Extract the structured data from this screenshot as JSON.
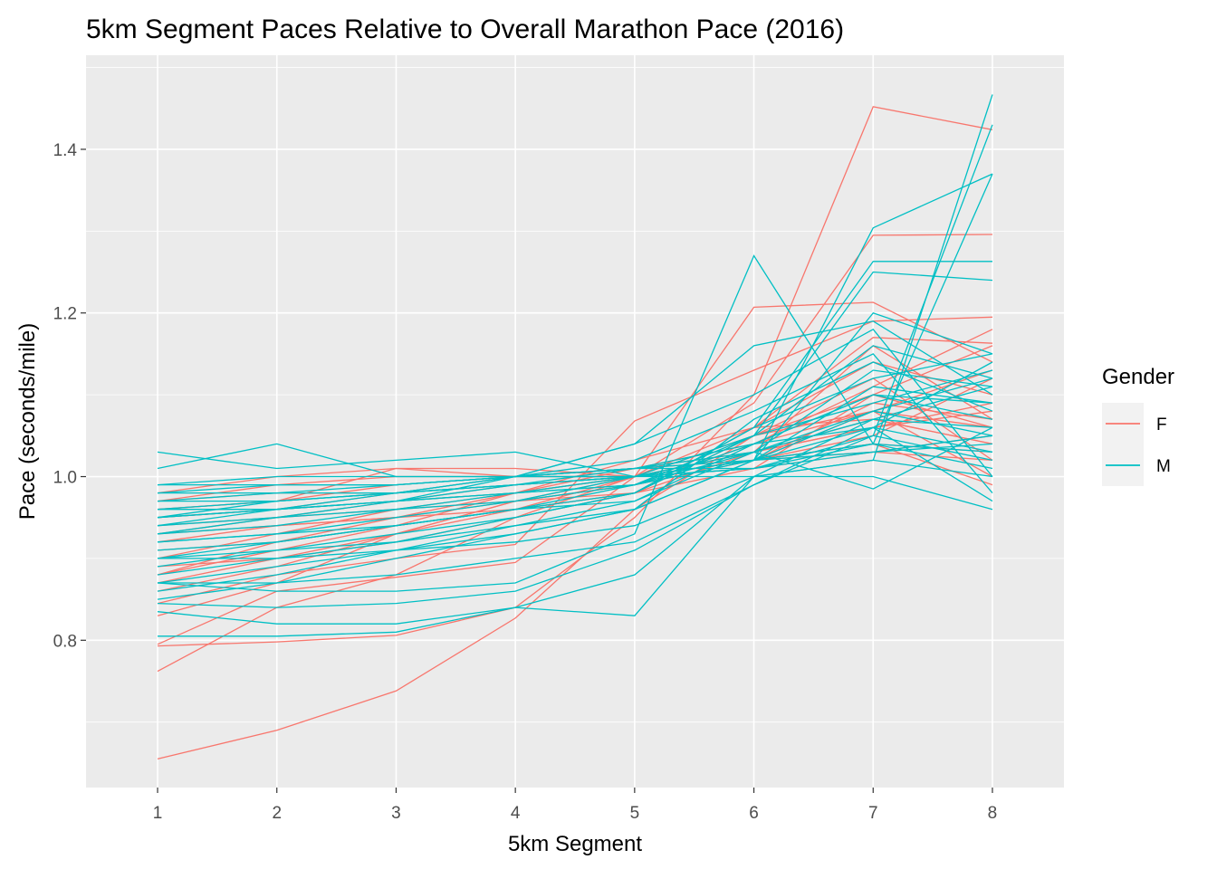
{
  "chart_data": {
    "type": "line",
    "title": "5km Segment Paces Relative to Overall Marathon Pace (2016)",
    "xlabel": "5km Segment",
    "ylabel": "Pace (seconds/mile)",
    "x": [
      1,
      2,
      3,
      4,
      5,
      6,
      7,
      8
    ],
    "x_ticks": [
      "1",
      "2",
      "3",
      "4",
      "5",
      "6",
      "7",
      "8"
    ],
    "y_ticks": [
      "0.8",
      "1.0",
      "1.2",
      "1.4"
    ],
    "y_tick_values": [
      0.8,
      1.0,
      1.2,
      1.4
    ],
    "xlim": [
      0.4,
      8.6
    ],
    "ylim": [
      0.62,
      1.515
    ],
    "grid": true,
    "panel_background": "#ebebeb",
    "legend": {
      "title": "Gender",
      "position": "right",
      "entries": [
        {
          "label": "F",
          "color": "#F8766D"
        },
        {
          "label": "M",
          "color": "#00BFC4"
        }
      ]
    },
    "series": [
      {
        "group": "F",
        "color": "#F8766D",
        "values": [
          0.655,
          0.69,
          0.738,
          0.827,
          0.96,
          1.05,
          1.08,
          1.06
        ]
      },
      {
        "group": "F",
        "color": "#F8766D",
        "values": [
          0.762,
          0.84,
          0.88,
          0.95,
          1.0,
          1.05,
          1.1,
          1.06
        ]
      },
      {
        "group": "F",
        "color": "#F8766D",
        "values": [
          0.793,
          0.798,
          0.806,
          0.84,
          0.95,
          1.1,
          1.452,
          1.424
        ]
      },
      {
        "group": "F",
        "color": "#F8766D",
        "values": [
          0.795,
          0.86,
          0.877,
          0.895,
          1.0,
          1.207,
          1.213,
          1.14
        ]
      },
      {
        "group": "F",
        "color": "#F8766D",
        "values": [
          0.83,
          0.87,
          0.93,
          0.96,
          1.0,
          1.09,
          1.295,
          1.296
        ]
      },
      {
        "group": "F",
        "color": "#F8766D",
        "values": [
          0.845,
          0.88,
          0.9,
          0.917,
          1.068,
          1.13,
          1.19,
          1.195
        ]
      },
      {
        "group": "F",
        "color": "#F8766D",
        "values": [
          0.87,
          0.9,
          0.93,
          0.97,
          1.0,
          1.06,
          1.17,
          1.163
        ]
      },
      {
        "group": "F",
        "color": "#F8766D",
        "values": [
          0.88,
          0.92,
          0.95,
          0.98,
          1.01,
          1.04,
          1.08,
          1.0
        ]
      },
      {
        "group": "F",
        "color": "#F8766D",
        "values": [
          0.9,
          0.93,
          0.96,
          0.98,
          1.0,
          1.03,
          1.06,
          1.09
        ]
      },
      {
        "group": "F",
        "color": "#F8766D",
        "values": [
          0.92,
          0.94,
          0.95,
          0.97,
          0.99,
          1.02,
          1.05,
          1.12
        ]
      },
      {
        "group": "F",
        "color": "#F8766D",
        "values": [
          0.93,
          0.95,
          0.97,
          0.98,
          1.0,
          1.03,
          1.07,
          1.04
        ]
      },
      {
        "group": "F",
        "color": "#F8766D",
        "values": [
          0.95,
          0.96,
          0.97,
          0.99,
          1.0,
          1.02,
          1.04,
          1.03
        ]
      },
      {
        "group": "F",
        "color": "#F8766D",
        "values": [
          0.96,
          0.97,
          1.01,
          1.0,
          1.0,
          1.01,
          1.03,
          1.05
        ]
      },
      {
        "group": "F",
        "color": "#F8766D",
        "values": [
          0.97,
          0.98,
          0.98,
          1.0,
          1.0,
          1.02,
          1.09,
          1.07
        ]
      },
      {
        "group": "F",
        "color": "#F8766D",
        "values": [
          0.94,
          0.95,
          0.96,
          0.97,
          0.99,
          1.04,
          1.11,
          1.18
        ]
      },
      {
        "group": "F",
        "color": "#F8766D",
        "values": [
          0.91,
          0.92,
          0.94,
          0.96,
          0.98,
          1.06,
          1.14,
          1.1
        ]
      },
      {
        "group": "F",
        "color": "#F8766D",
        "values": [
          0.89,
          0.9,
          0.92,
          0.95,
          0.98,
          1.05,
          1.12,
          1.02
        ]
      },
      {
        "group": "F",
        "color": "#F8766D",
        "values": [
          0.97,
          0.99,
          1.0,
          1.0,
          1.01,
          1.03,
          1.06,
          1.08
        ]
      },
      {
        "group": "F",
        "color": "#F8766D",
        "values": [
          0.98,
          1.0,
          1.01,
          1.01,
          1.0,
          1.02,
          1.04,
          0.99
        ]
      },
      {
        "group": "F",
        "color": "#F8766D",
        "values": [
          0.95,
          0.96,
          0.98,
          0.99,
          1.0,
          1.02,
          1.08,
          1.13
        ]
      },
      {
        "group": "F",
        "color": "#F8766D",
        "values": [
          0.86,
          0.89,
          0.93,
          0.97,
          0.98,
          1.03,
          1.16,
          1.07
        ]
      },
      {
        "group": "F",
        "color": "#F8766D",
        "values": [
          0.93,
          0.94,
          0.95,
          0.96,
          0.98,
          1.01,
          1.1,
          1.16
        ]
      },
      {
        "group": "F",
        "color": "#F8766D",
        "values": [
          0.88,
          0.91,
          0.94,
          0.98,
          1.02,
          1.06,
          1.07,
          1.04
        ]
      },
      {
        "group": "F",
        "color": "#F8766D",
        "values": [
          0.96,
          0.97,
          0.99,
          1.0,
          1.01,
          1.02,
          1.03,
          1.02
        ]
      },
      {
        "group": "M",
        "color": "#00BFC4",
        "values": [
          0.805,
          0.805,
          0.81,
          0.84,
          0.88,
          1.0,
          1.0,
          0.96
        ]
      },
      {
        "group": "M",
        "color": "#00BFC4",
        "values": [
          0.835,
          0.82,
          0.82,
          0.84,
          0.83,
          1.0,
          1.02,
          1.467
        ]
      },
      {
        "group": "M",
        "color": "#00BFC4",
        "values": [
          0.845,
          0.84,
          0.845,
          0.86,
          0.91,
          0.99,
          1.05,
          1.43
        ]
      },
      {
        "group": "M",
        "color": "#00BFC4",
        "values": [
          0.87,
          0.86,
          0.86,
          0.87,
          0.93,
          1.27,
          1.04,
          1.37
        ]
      },
      {
        "group": "M",
        "color": "#00BFC4",
        "values": [
          0.87,
          0.89,
          0.91,
          0.93,
          0.96,
          1.02,
          1.304,
          1.37
        ]
      },
      {
        "group": "M",
        "color": "#00BFC4",
        "values": [
          0.88,
          0.9,
          0.92,
          0.95,
          0.98,
          1.06,
          1.263,
          1.263
        ]
      },
      {
        "group": "M",
        "color": "#00BFC4",
        "values": [
          0.9,
          0.92,
          0.94,
          0.96,
          0.99,
          1.05,
          1.25,
          1.24
        ]
      },
      {
        "group": "M",
        "color": "#00BFC4",
        "values": [
          1.03,
          1.01,
          1.02,
          1.03,
          1.0,
          1.02,
          1.2,
          1.15
        ]
      },
      {
        "group": "M",
        "color": "#00BFC4",
        "values": [
          1.01,
          1.04,
          1.0,
          1.0,
          1.04,
          1.16,
          1.19,
          1.1
        ]
      },
      {
        "group": "M",
        "color": "#00BFC4",
        "values": [
          0.92,
          0.93,
          0.95,
          0.97,
          1.0,
          1.05,
          1.16,
          1.12
        ]
      },
      {
        "group": "M",
        "color": "#00BFC4",
        "values": [
          0.95,
          0.96,
          0.97,
          0.98,
          1.0,
          1.03,
          1.13,
          1.11
        ]
      },
      {
        "group": "M",
        "color": "#00BFC4",
        "values": [
          0.97,
          0.98,
          0.98,
          0.99,
          1.0,
          1.02,
          1.11,
          1.09
        ]
      },
      {
        "group": "M",
        "color": "#00BFC4",
        "values": [
          0.93,
          0.94,
          0.96,
          0.98,
          0.99,
          1.04,
          1.1,
          1.07
        ]
      },
      {
        "group": "M",
        "color": "#00BFC4",
        "values": [
          0.94,
          0.95,
          0.96,
          0.97,
          0.99,
          1.03,
          1.08,
          1.05
        ]
      },
      {
        "group": "M",
        "color": "#00BFC4",
        "values": [
          0.96,
          0.97,
          0.98,
          0.99,
          1.0,
          1.02,
          1.06,
          1.03
        ]
      },
      {
        "group": "M",
        "color": "#00BFC4",
        "values": [
          0.98,
          0.99,
          0.99,
          1.0,
          1.0,
          1.01,
          1.05,
          1.02
        ]
      },
      {
        "group": "M",
        "color": "#00BFC4",
        "values": [
          0.99,
          1.0,
          1.0,
          1.0,
          1.01,
          1.01,
          1.04,
          1.01
        ]
      },
      {
        "group": "M",
        "color": "#00BFC4",
        "values": [
          0.91,
          0.92,
          0.94,
          0.96,
          0.98,
          1.05,
          1.09,
          1.13
        ]
      },
      {
        "group": "M",
        "color": "#00BFC4",
        "values": [
          0.89,
          0.91,
          0.93,
          0.95,
          0.98,
          1.06,
          1.12,
          1.15
        ]
      },
      {
        "group": "M",
        "color": "#00BFC4",
        "values": [
          0.9,
          0.91,
          0.92,
          0.94,
          0.96,
          1.07,
          1.14,
          1.08
        ]
      },
      {
        "group": "M",
        "color": "#00BFC4",
        "values": [
          0.93,
          0.95,
          0.97,
          1.0,
          1.04,
          1.1,
          1.18,
          1.0
        ]
      },
      {
        "group": "M",
        "color": "#00BFC4",
        "values": [
          0.95,
          0.96,
          0.98,
          1.0,
          1.02,
          1.08,
          1.15,
          0.98
        ]
      },
      {
        "group": "M",
        "color": "#00BFC4",
        "values": [
          0.97,
          0.97,
          0.98,
          0.99,
          1.01,
          1.04,
          1.06,
          0.97
        ]
      },
      {
        "group": "M",
        "color": "#00BFC4",
        "values": [
          0.92,
          0.93,
          0.94,
          0.96,
          0.97,
          1.03,
          0.985,
          1.06
        ]
      },
      {
        "group": "M",
        "color": "#00BFC4",
        "values": [
          0.85,
          0.87,
          0.9,
          0.93,
          0.96,
          1.02,
          1.08,
          1.12
        ]
      },
      {
        "group": "M",
        "color": "#00BFC4",
        "values": [
          0.86,
          0.88,
          0.91,
          0.94,
          0.97,
          1.04,
          1.1,
          1.09
        ]
      },
      {
        "group": "M",
        "color": "#00BFC4",
        "values": [
          0.94,
          0.96,
          0.97,
          0.98,
          0.99,
          1.02,
          1.03,
          1.04
        ]
      },
      {
        "group": "M",
        "color": "#00BFC4",
        "values": [
          0.98,
          0.98,
          0.99,
          1.0,
          1.0,
          1.0,
          1.02,
          1.0
        ]
      },
      {
        "group": "M",
        "color": "#00BFC4",
        "values": [
          0.96,
          0.96,
          0.97,
          0.99,
          1.0,
          1.01,
          1.03,
          1.05
        ]
      },
      {
        "group": "M",
        "color": "#00BFC4",
        "values": [
          0.9,
          0.9,
          0.91,
          0.92,
          0.94,
          1.0,
          1.07,
          1.11
        ]
      },
      {
        "group": "M",
        "color": "#00BFC4",
        "values": [
          0.87,
          0.87,
          0.88,
          0.9,
          0.92,
          0.99,
          1.06,
          1.14
        ]
      },
      {
        "group": "M",
        "color": "#00BFC4",
        "values": [
          0.99,
          0.99,
          0.99,
          1.0,
          1.01,
          1.02,
          1.04,
          1.03
        ]
      },
      {
        "group": "M",
        "color": "#00BFC4",
        "values": [
          0.95,
          0.97,
          0.98,
          1.0,
          1.01,
          1.03,
          1.07,
          1.06
        ]
      }
    ]
  }
}
